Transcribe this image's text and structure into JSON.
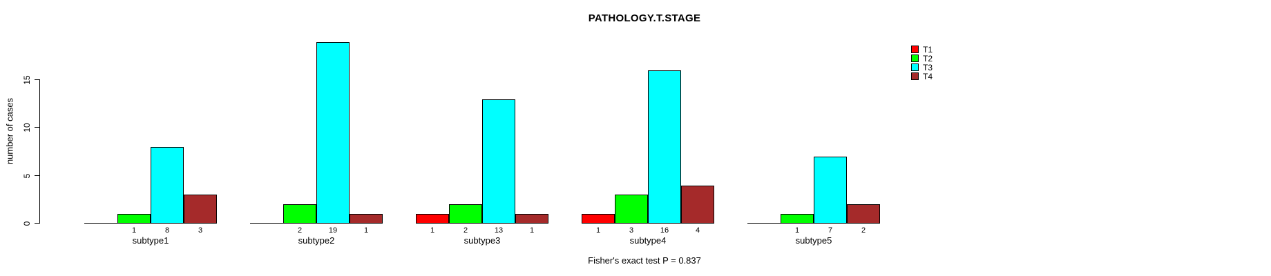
{
  "chart_data": {
    "type": "bar",
    "title": "PATHOLOGY.T.STAGE",
    "ylabel": "number of cases",
    "xlabel": "",
    "categories": [
      "subtype1",
      "subtype2",
      "subtype3",
      "subtype4",
      "subtype5"
    ],
    "series": [
      {
        "name": "T1",
        "color": "#FF0000",
        "values": [
          0,
          0,
          1,
          1,
          0
        ]
      },
      {
        "name": "T2",
        "color": "#00FF00",
        "values": [
          1,
          2,
          2,
          3,
          1
        ]
      },
      {
        "name": "T3",
        "color": "#00FFFF",
        "values": [
          8,
          19,
          13,
          16,
          7
        ]
      },
      {
        "name": "T4",
        "color": "#A52A2A",
        "values": [
          3,
          1,
          1,
          4,
          2
        ]
      }
    ],
    "yticks": [
      0,
      5,
      10,
      15
    ],
    "ylim": [
      0,
      19
    ],
    "grid": false,
    "legend_position": "right",
    "annotation": "Fisher's exact test P = 0.837"
  }
}
